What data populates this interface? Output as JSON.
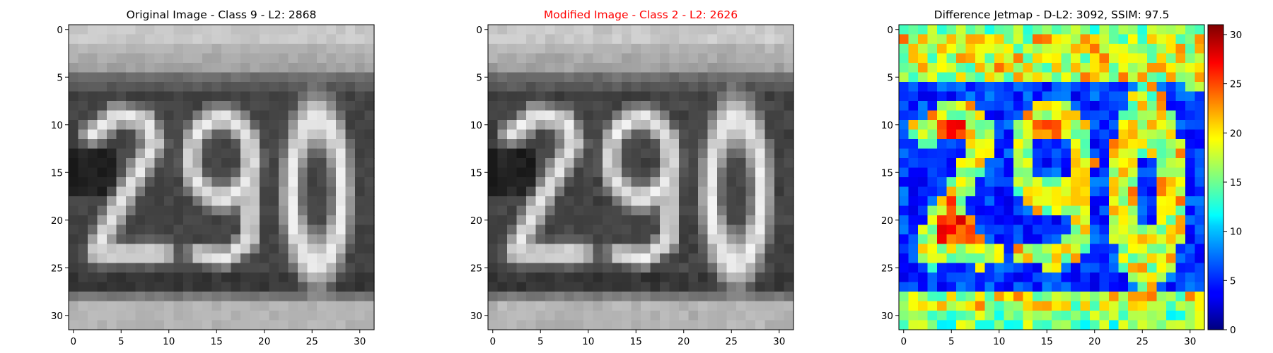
{
  "chart_data": [
    {
      "type": "heatmap",
      "title": "Original Image - Class 9 - L2: 2868",
      "title_color": "#000000",
      "colormap": "gray",
      "x_ticks": [
        0,
        5,
        10,
        15,
        20,
        25,
        30
      ],
      "y_ticks": [
        0,
        5,
        10,
        15,
        20,
        25,
        30
      ],
      "xlim": [
        -0.5,
        31.5
      ],
      "ylim": [
        31.5,
        -0.5
      ],
      "grid": "32x32 grayscale digit image showing the number 290"
    },
    {
      "type": "heatmap",
      "title": "Modified Image - Class 2 - L2: 2626",
      "title_color": "#ff0000",
      "colormap": "gray",
      "x_ticks": [
        0,
        5,
        10,
        15,
        20,
        25,
        30
      ],
      "y_ticks": [
        0,
        5,
        10,
        15,
        20,
        25,
        30
      ],
      "xlim": [
        -0.5,
        31.5
      ],
      "ylim": [
        31.5,
        -0.5
      ],
      "grid": "32x32 grayscale digit image showing the number 290 (slightly perturbed)"
    },
    {
      "type": "heatmap",
      "title": "Difference Jetmap - D-L2: 3092, SSIM: 97.5",
      "title_color": "#000000",
      "colormap": "jet",
      "x_ticks": [
        0,
        5,
        10,
        15,
        20,
        25,
        30
      ],
      "y_ticks": [
        0,
        5,
        10,
        15,
        20,
        25,
        30
      ],
      "xlim": [
        -0.5,
        31.5
      ],
      "ylim": [
        31.5,
        -0.5
      ],
      "colorbar": {
        "min": 0,
        "max": 31,
        "ticks": [
          0,
          5,
          10,
          15,
          20,
          25,
          30
        ]
      }
    }
  ]
}
